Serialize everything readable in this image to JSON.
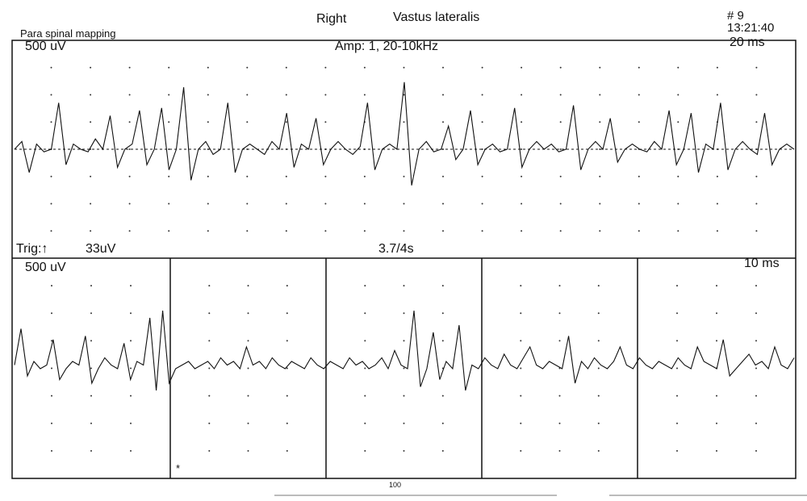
{
  "header": {
    "side": "Right",
    "muscle": "Vastus lateralis",
    "record_number": "# 9",
    "time": "13:21:40",
    "study": "Para spinal mapping"
  },
  "top_panel": {
    "sensitivity": "500 uV",
    "amplifier": "Amp: 1, 20-10kHz",
    "sweep": "20 ms"
  },
  "trigger_bar": {
    "trigger": "Trig:↑",
    "level": "33uV",
    "delay": "3.7/4s"
  },
  "bottom_panel": {
    "sensitivity": "500 uV",
    "sweep": "10 ms",
    "marker": "*"
  },
  "footer": {
    "page_mark": "100"
  },
  "chart_data": [
    {
      "type": "line",
      "title": "",
      "sensitivity": "500 uV",
      "sweep": "20 ms",
      "grid": "dotted",
      "series": [
        {
          "values": [
            0,
            30,
            -90,
            20,
            -10,
            0,
            180,
            -60,
            20,
            0,
            -10,
            40,
            0,
            130,
            -70,
            0,
            20,
            150,
            -60,
            0,
            160,
            -80,
            0,
            240,
            -120,
            0,
            30,
            -20,
            0,
            180,
            -90,
            0,
            20,
            0,
            -20,
            30,
            0,
            140,
            -70,
            20,
            0,
            120,
            -60,
            0,
            30,
            0,
            -20,
            10,
            180,
            -80,
            0,
            20,
            0,
            260,
            -140,
            0,
            30,
            -10,
            0,
            90,
            -40,
            0,
            150,
            -60,
            0,
            20,
            -10,
            0,
            160,
            -70,
            0,
            30,
            0,
            20,
            -10,
            0,
            170,
            -80,
            0,
            30,
            0,
            120,
            -50,
            0,
            20,
            0,
            -10,
            30,
            0,
            150,
            -60,
            0,
            140,
            -90,
            20,
            0,
            180,
            -80,
            0,
            30,
            0,
            -20,
            140,
            -60,
            0,
            20,
            0
          ]
        }
      ]
    },
    {
      "type": "line",
      "title": "",
      "sensitivity": "500 uV",
      "sweep": "10 ms",
      "grid": "dotted",
      "panels": 5,
      "series": [
        {
          "values": [
            10,
            110,
            -20,
            20,
            0,
            10,
            80,
            -30,
            0,
            20,
            10,
            90,
            -40,
            0,
            30,
            10,
            0,
            70,
            -30,
            20,
            10,
            140,
            -60,
            160,
            -40,
            0,
            10,
            20,
            0,
            10,
            20,
            0,
            30,
            10,
            20,
            0,
            60,
            10,
            20,
            0,
            30,
            10,
            0,
            20,
            10,
            0,
            30,
            10,
            0,
            20,
            10,
            0,
            30,
            10,
            20,
            0,
            10,
            30,
            0,
            50,
            10,
            0,
            160,
            -50,
            0,
            100,
            -30,
            20,
            0,
            120,
            -60,
            10,
            0,
            30,
            10,
            0,
            40,
            10,
            0,
            30,
            60,
            10,
            0,
            20,
            10,
            0,
            90,
            -40,
            20,
            0,
            30,
            10,
            0,
            20,
            60,
            10,
            0,
            30,
            10,
            0,
            20,
            10,
            0,
            30,
            10,
            0,
            60,
            20,
            10,
            0,
            80,
            -20,
            0,
            20,
            40,
            10,
            20,
            0,
            60,
            10,
            0,
            30
          ]
        }
      ]
    }
  ]
}
